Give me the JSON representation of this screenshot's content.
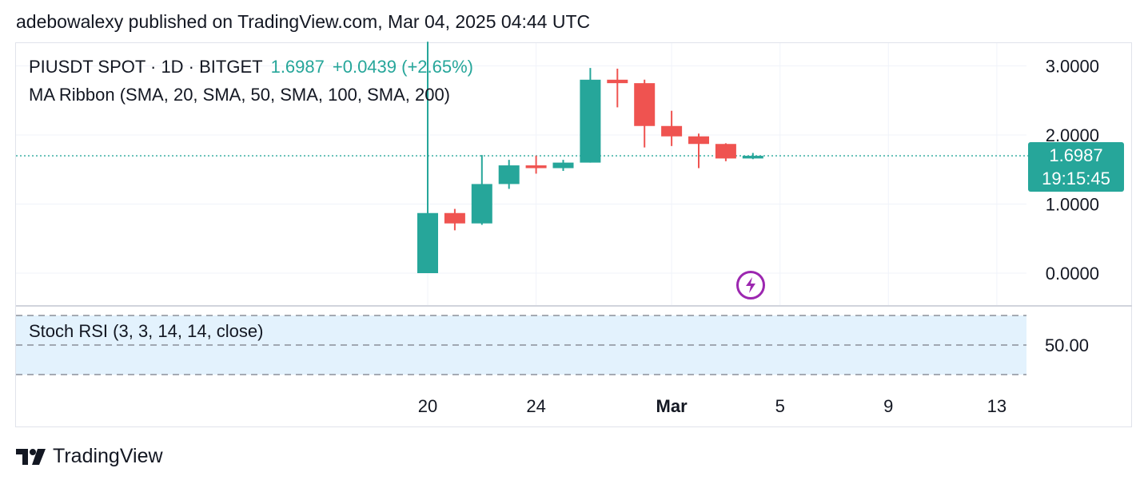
{
  "header": {
    "text": "adebowalexy published on TradingView.com, Mar 04, 2025 04:44 UTC"
  },
  "legend": {
    "symbol": "PIUSDT SPOT · 1D · BITGET",
    "price": "1.6987",
    "change": "+0.0439 (+2.65%)",
    "indicator": "MA Ribbon (SMA, 20, SMA, 50, SMA, 100, SMA, 200)",
    "oscillator": "Stoch RSI (3, 3, 14, 14, close)"
  },
  "price_tag": {
    "price": "1.6987",
    "countdown": "19:15:45"
  },
  "footer": {
    "brand": "TradingView"
  },
  "colors": {
    "up": "#26a69a",
    "down": "#ef5350",
    "rsi_band": "#e3f2fd",
    "flash": "#9c27b0"
  },
  "icons": {
    "flash": "lightning-bolt-icon",
    "logo": "tradingview-logo-icon"
  },
  "chart_data": {
    "type": "candlestick",
    "y_ticks": [
      "3.0000",
      "2.0000",
      "1.0000",
      "0.0000"
    ],
    "y_tick_values": [
      3,
      2,
      1,
      0
    ],
    "rsi_ticks": [
      "50.00"
    ],
    "x_ticks": [
      {
        "label": "20",
        "day": 20,
        "bold": false
      },
      {
        "label": "24",
        "day": 24,
        "bold": false
      },
      {
        "label": "Mar",
        "day": 29,
        "bold": true
      },
      {
        "label": "5",
        "day": 33,
        "bold": false
      },
      {
        "label": "9",
        "day": 37,
        "bold": false
      },
      {
        "label": "13",
        "day": 41,
        "bold": false
      }
    ],
    "last_price": 1.6987,
    "candles": [
      {
        "date": "Feb 20",
        "day": 20,
        "open": 0.0,
        "high": 3.35,
        "low": 0.0,
        "close": 0.87
      },
      {
        "date": "Feb 21",
        "day": 21,
        "open": 0.87,
        "high": 0.93,
        "low": 0.62,
        "close": 0.72
      },
      {
        "date": "Feb 22",
        "day": 22,
        "open": 0.72,
        "high": 1.71,
        "low": 0.7,
        "close": 1.29
      },
      {
        "date": "Feb 23",
        "day": 23,
        "open": 1.29,
        "high": 1.64,
        "low": 1.22,
        "close": 1.56
      },
      {
        "date": "Feb 24",
        "day": 24,
        "open": 1.56,
        "high": 1.7,
        "low": 1.44,
        "close": 1.52
      },
      {
        "date": "Feb 25",
        "day": 25,
        "open": 1.52,
        "high": 1.64,
        "low": 1.48,
        "close": 1.6
      },
      {
        "date": "Feb 26",
        "day": 26,
        "open": 1.6,
        "high": 2.97,
        "low": 1.6,
        "close": 2.8
      },
      {
        "date": "Feb 27",
        "day": 27,
        "open": 2.8,
        "high": 2.96,
        "low": 2.4,
        "close": 2.75
      },
      {
        "date": "Feb 28",
        "day": 28,
        "open": 2.75,
        "high": 2.8,
        "low": 1.82,
        "close": 2.13
      },
      {
        "date": "Mar 01",
        "day": 29,
        "open": 2.13,
        "high": 2.35,
        "low": 1.84,
        "close": 1.98
      },
      {
        "date": "Mar 02",
        "day": 30,
        "open": 1.98,
        "high": 2.02,
        "low": 1.52,
        "close": 1.87
      },
      {
        "date": "Mar 03",
        "day": 31,
        "open": 1.87,
        "high": 1.88,
        "low": 1.62,
        "close": 1.66
      },
      {
        "date": "Mar 04",
        "day": 32,
        "open": 1.66,
        "high": 1.74,
        "low": 1.65,
        "close": 1.6987
      }
    ]
  }
}
